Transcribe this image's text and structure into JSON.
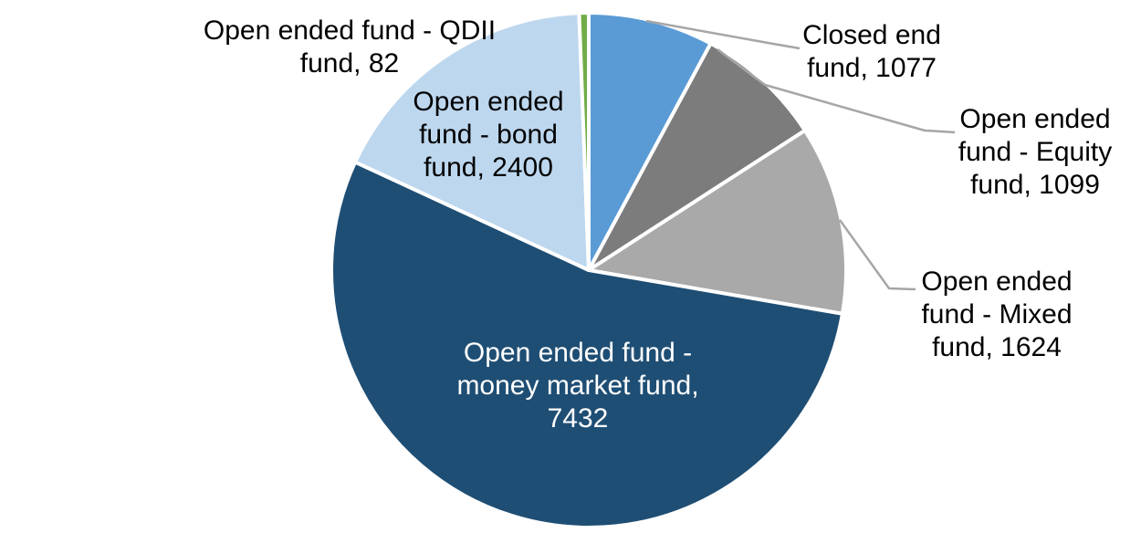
{
  "chart_data": {
    "type": "pie",
    "title": "",
    "legend": "none",
    "direction": "clockwise",
    "start_angle_deg": 0,
    "total": 13714,
    "slice_border_color": "#FFFFFF",
    "leader_line_color": "#A6A6A6",
    "slices": [
      {
        "id": "closed-end-fund",
        "label": "Closed end fund",
        "value": 1077,
        "color": "#5B9BD5"
      },
      {
        "id": "equity-fund",
        "label": "Open ended fund - Equity fund",
        "value": 1099,
        "color": "#7C7C7C"
      },
      {
        "id": "mixed-fund",
        "label": "Open ended fund - Mixed fund",
        "value": 1624,
        "color": "#A9A9A9"
      },
      {
        "id": "money-market-fund",
        "label": "Open ended fund - money market fund",
        "value": 7432,
        "color": "#1F4E74"
      },
      {
        "id": "bond-fund",
        "label": "Open ended fund - bond fund",
        "value": 2400,
        "color": "#BDD7EE"
      },
      {
        "id": "qdii-fund",
        "label": "Open ended fund - QDII fund",
        "value": 82,
        "color": "#70AD47"
      }
    ]
  },
  "labels": {
    "qdii": {
      "lines": [
        "Open ended fund - QDII",
        "fund, 82"
      ]
    },
    "bond": {
      "lines": [
        "Open ended",
        "fund - bond",
        "fund, 2400"
      ]
    },
    "closed_end": {
      "lines": [
        "Closed end",
        "fund, 1077"
      ]
    },
    "equity": {
      "lines": [
        "Open ended",
        "fund - Equity",
        "fund, 1099"
      ]
    },
    "mixed": {
      "lines": [
        "Open ended",
        "fund - Mixed",
        "fund, 1624"
      ]
    },
    "money_market": {
      "lines": [
        "Open ended fund -",
        "money market fund,",
        "7432"
      ]
    }
  }
}
